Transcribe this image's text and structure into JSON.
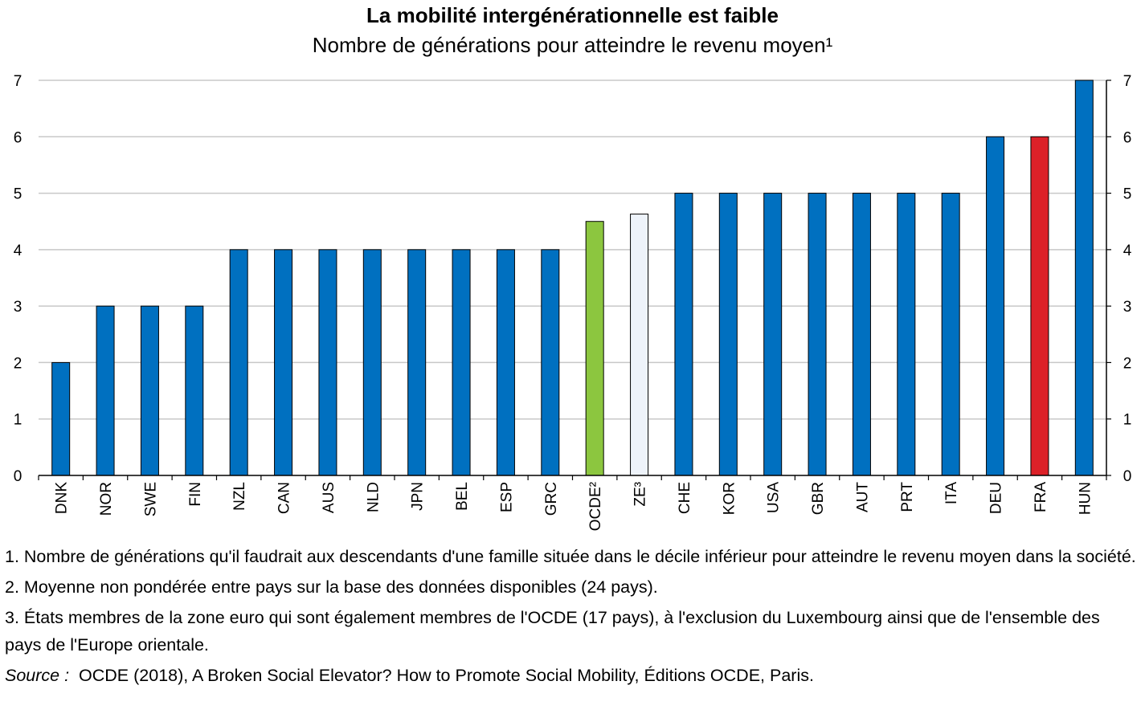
{
  "chart_data": {
    "type": "bar",
    "title": "La mobilité intergénérationnelle est faible",
    "subtitle": "Nombre de générations pour atteindre le revenu moyen¹",
    "categories": [
      "DNK",
      "NOR",
      "SWE",
      "FIN",
      "NZL",
      "CAN",
      "AUS",
      "NLD",
      "JPN",
      "BEL",
      "ESP",
      "GRC",
      "OCDE²",
      "ZE³",
      "CHE",
      "KOR",
      "USA",
      "GBR",
      "AUT",
      "PRT",
      "ITA",
      "DEU",
      "FRA",
      "HUN"
    ],
    "values": [
      2,
      3,
      3,
      3,
      4,
      4,
      4,
      4,
      4,
      4,
      4,
      4,
      4.5,
      4.63,
      5,
      5,
      5,
      5,
      5,
      5,
      5,
      6,
      6,
      7
    ],
    "bar_colors": [
      "#0070c0",
      "#0070c0",
      "#0070c0",
      "#0070c0",
      "#0070c0",
      "#0070c0",
      "#0070c0",
      "#0070c0",
      "#0070c0",
      "#0070c0",
      "#0070c0",
      "#0070c0",
      "#8cc63f",
      "#eef3fa",
      "#0070c0",
      "#0070c0",
      "#0070c0",
      "#0070c0",
      "#0070c0",
      "#0070c0",
      "#0070c0",
      "#0070c0",
      "#dc2128",
      "#0070c0"
    ],
    "ylim": [
      0,
      7
    ],
    "yticks": [
      0,
      1,
      2,
      3,
      4,
      5,
      6,
      7
    ],
    "xlabel": "",
    "ylabel": "",
    "grid": true,
    "secondary_axis": true
  },
  "notes": [
    "1. Nombre de générations qu'il faudrait aux descendants d'une famille située dans le décile inférieur pour atteindre le revenu moyen dans la société.",
    "2. Moyenne non pondérée entre pays sur la base des données disponibles (24 pays).",
    "3. États membres de la zone euro qui sont également membres de l'OCDE (17 pays), à l'exclusion du Luxembourg ainsi que de l'ensemble des pays de l'Europe orientale."
  ],
  "source": {
    "label": "Source :",
    "text": "OCDE (2018), A Broken Social Elevator? How to Promote Social Mobility, Éditions OCDE, Paris."
  }
}
